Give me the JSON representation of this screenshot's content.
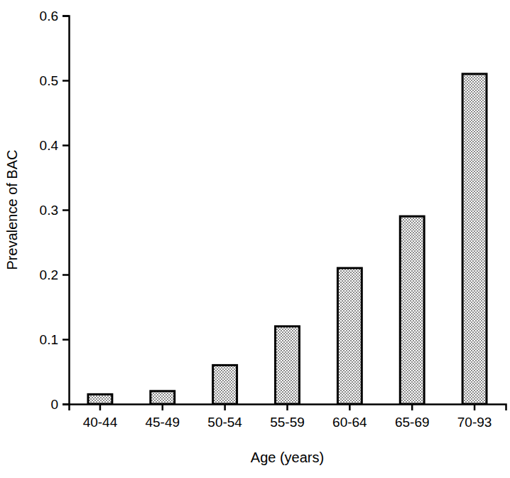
{
  "chart_data": {
    "type": "bar",
    "x_label": "Age (years)",
    "y_label": "Prevalence of BAC",
    "categories": [
      "40-44",
      "45-49",
      "50-54",
      "55-59",
      "60-64",
      "65-69",
      "70-93"
    ],
    "values": [
      0.015,
      0.02,
      0.06,
      0.12,
      0.21,
      0.29,
      0.51
    ],
    "color": "#8c8c8c",
    "ylim": [
      0,
      0.6
    ],
    "yticks": [
      0,
      0.1,
      0.2,
      0.3,
      0.4,
      0.5,
      0.6
    ],
    "grid": false
  }
}
